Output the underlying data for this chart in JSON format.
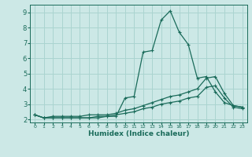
{
  "xlabel": "Humidex (Indice chaleur)",
  "bg_color": "#cce8e6",
  "grid_color": "#aad4d0",
  "line_color": "#1a6b5a",
  "xlim": [
    -0.5,
    23.5
  ],
  "ylim": [
    1.8,
    9.5
  ],
  "xticks": [
    0,
    1,
    2,
    3,
    4,
    5,
    6,
    7,
    8,
    9,
    10,
    11,
    12,
    13,
    14,
    15,
    16,
    17,
    18,
    19,
    20,
    21,
    22,
    23
  ],
  "yticks": [
    2,
    3,
    4,
    5,
    6,
    7,
    8,
    9
  ],
  "series1_x": [
    0,
    1,
    2,
    3,
    4,
    5,
    6,
    7,
    8,
    9,
    10,
    11,
    12,
    13,
    14,
    15,
    16,
    17,
    18,
    19,
    20,
    21,
    22,
    23
  ],
  "series1_y": [
    2.3,
    2.1,
    2.1,
    2.1,
    2.1,
    2.1,
    2.1,
    2.1,
    2.2,
    2.2,
    3.4,
    3.5,
    6.4,
    6.5,
    8.5,
    9.1,
    7.7,
    6.9,
    4.7,
    4.8,
    3.8,
    3.1,
    2.9,
    2.8
  ],
  "series2_x": [
    0,
    1,
    2,
    3,
    4,
    5,
    6,
    7,
    8,
    9,
    10,
    11,
    12,
    13,
    14,
    15,
    16,
    17,
    18,
    19,
    20,
    21,
    22,
    23
  ],
  "series2_y": [
    2.3,
    2.1,
    2.2,
    2.2,
    2.2,
    2.2,
    2.3,
    2.3,
    2.3,
    2.4,
    2.6,
    2.7,
    2.9,
    3.1,
    3.3,
    3.5,
    3.6,
    3.8,
    4.0,
    4.7,
    4.8,
    3.7,
    2.9,
    2.8
  ],
  "series3_x": [
    0,
    1,
    2,
    3,
    4,
    5,
    6,
    7,
    8,
    9,
    10,
    11,
    12,
    13,
    14,
    15,
    16,
    17,
    18,
    19,
    20,
    21,
    22,
    23
  ],
  "series3_y": [
    2.3,
    2.1,
    2.1,
    2.1,
    2.1,
    2.1,
    2.1,
    2.2,
    2.2,
    2.3,
    2.4,
    2.5,
    2.7,
    2.8,
    3.0,
    3.1,
    3.2,
    3.4,
    3.5,
    4.1,
    4.2,
    3.4,
    2.8,
    2.7
  ]
}
